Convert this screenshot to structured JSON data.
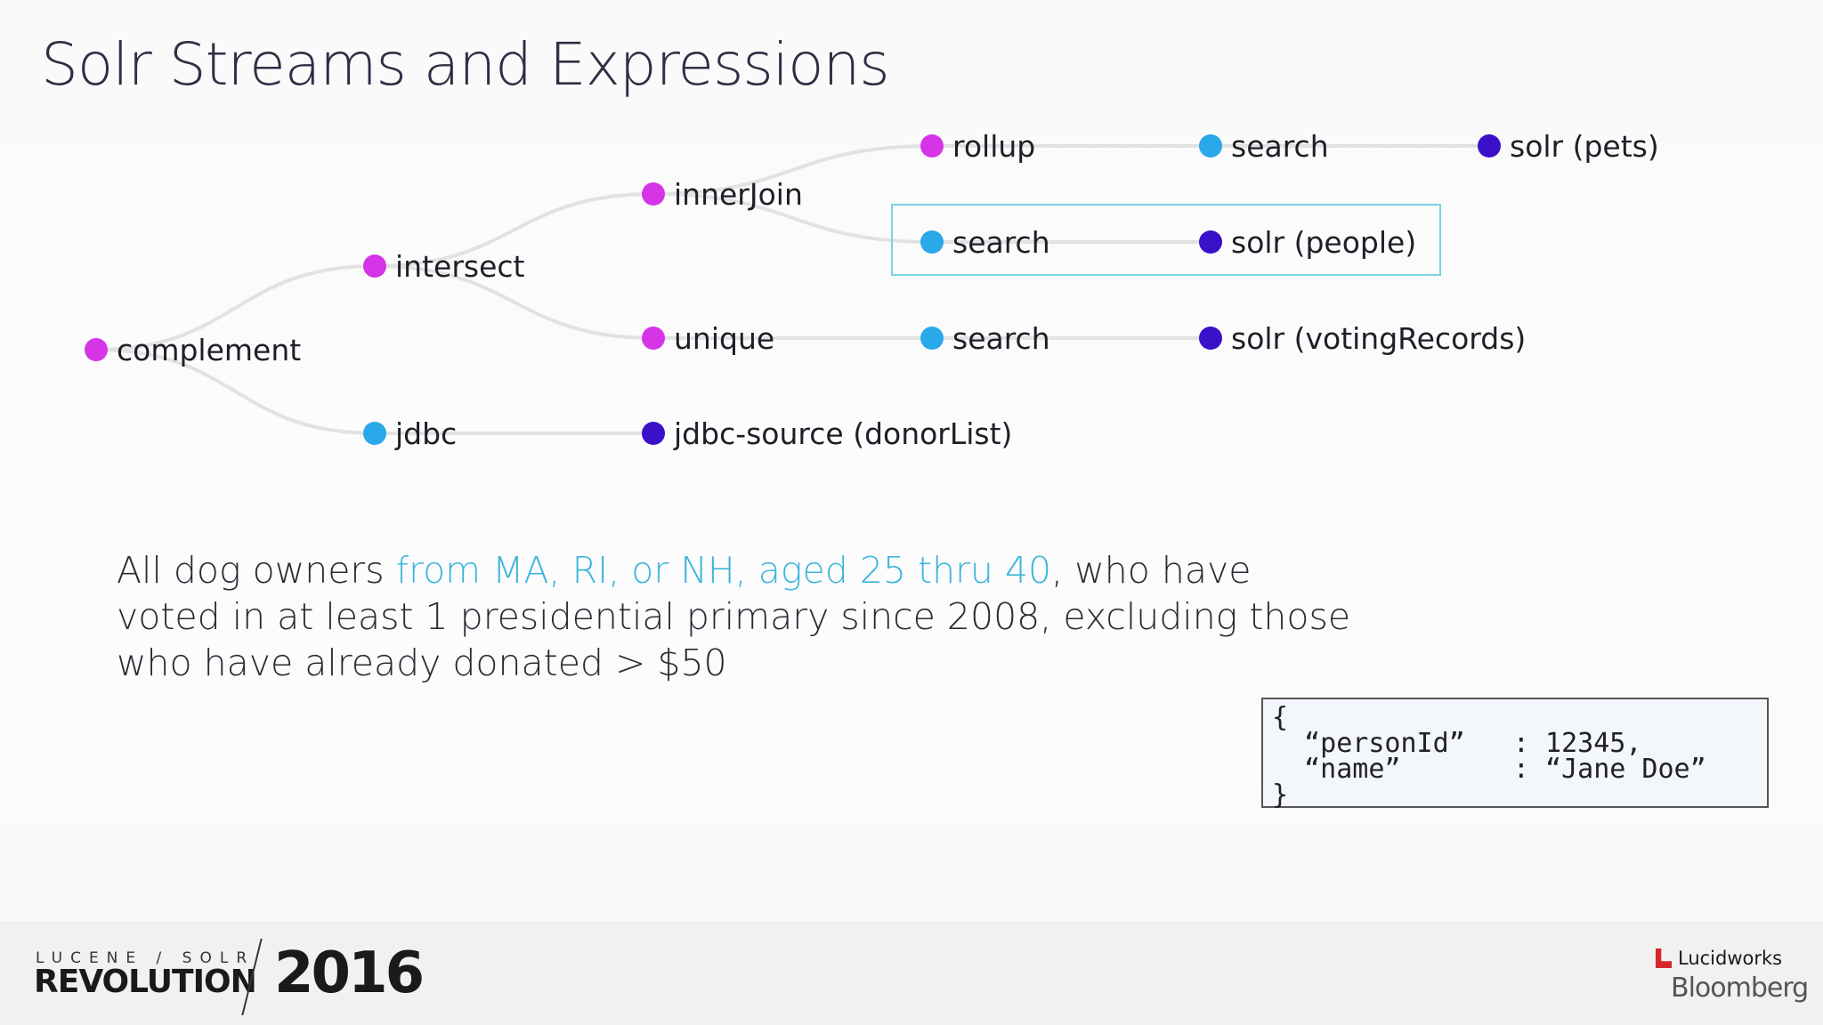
{
  "title": "Solr Streams and Expressions",
  "colors": {
    "decorator": "#d535e6",
    "source": "#29a8ea",
    "endpoint": "#3a10c8",
    "edge": "#e2e2e2",
    "highlight_box": "#7dd0e6",
    "caption_highlight": "#3db6dc"
  },
  "tree": {
    "nodes": [
      {
        "id": "complement",
        "label": "complement",
        "kind": "decorator"
      },
      {
        "id": "intersect",
        "label": "intersect",
        "kind": "decorator"
      },
      {
        "id": "jdbc",
        "label": "jdbc",
        "kind": "source"
      },
      {
        "id": "innerJoin",
        "label": "innerJoin",
        "kind": "decorator"
      },
      {
        "id": "unique",
        "label": "unique",
        "kind": "decorator"
      },
      {
        "id": "jdbc-source",
        "label": "jdbc-source (donorList)",
        "kind": "endpoint"
      },
      {
        "id": "rollup",
        "label": "rollup",
        "kind": "decorator"
      },
      {
        "id": "search-people",
        "label": "search",
        "kind": "source"
      },
      {
        "id": "search-voting",
        "label": "search",
        "kind": "source"
      },
      {
        "id": "search-pets",
        "label": "search",
        "kind": "source"
      },
      {
        "id": "solr-pets",
        "label": "solr (pets)",
        "kind": "endpoint"
      },
      {
        "id": "solr-people",
        "label": "solr (people)",
        "kind": "endpoint"
      },
      {
        "id": "solr-voting",
        "label": "solr (votingRecords)",
        "kind": "endpoint"
      }
    ],
    "edges": [
      [
        "complement",
        "intersect"
      ],
      [
        "complement",
        "jdbc"
      ],
      [
        "intersect",
        "innerJoin"
      ],
      [
        "intersect",
        "unique"
      ],
      [
        "jdbc",
        "jdbc-source"
      ],
      [
        "innerJoin",
        "rollup"
      ],
      [
        "innerJoin",
        "search-people"
      ],
      [
        "unique",
        "search-voting"
      ],
      [
        "rollup",
        "search-pets"
      ],
      [
        "search-pets",
        "solr-pets"
      ],
      [
        "search-people",
        "solr-people"
      ],
      [
        "search-voting",
        "solr-voting"
      ]
    ],
    "highlighted": [
      "search-people",
      "solr-people"
    ]
  },
  "caption": {
    "part1": "All dog owners ",
    "highlight": "from MA, RI, or NH, aged 25 thru 40",
    "part2": ", who have voted in at least 1 presidential primary since 2008, excluding those who have already donated > $50"
  },
  "json_example": "{\n  “personId”   : 12345,\n  “name”       : “Jane Doe”\n}",
  "footer": {
    "event_line1": "LUCENE / SOLR",
    "event_line2": "REVOLUTION",
    "year": "2016",
    "sponsor1": "Lucidworks",
    "sponsor2": "Bloomberg"
  }
}
